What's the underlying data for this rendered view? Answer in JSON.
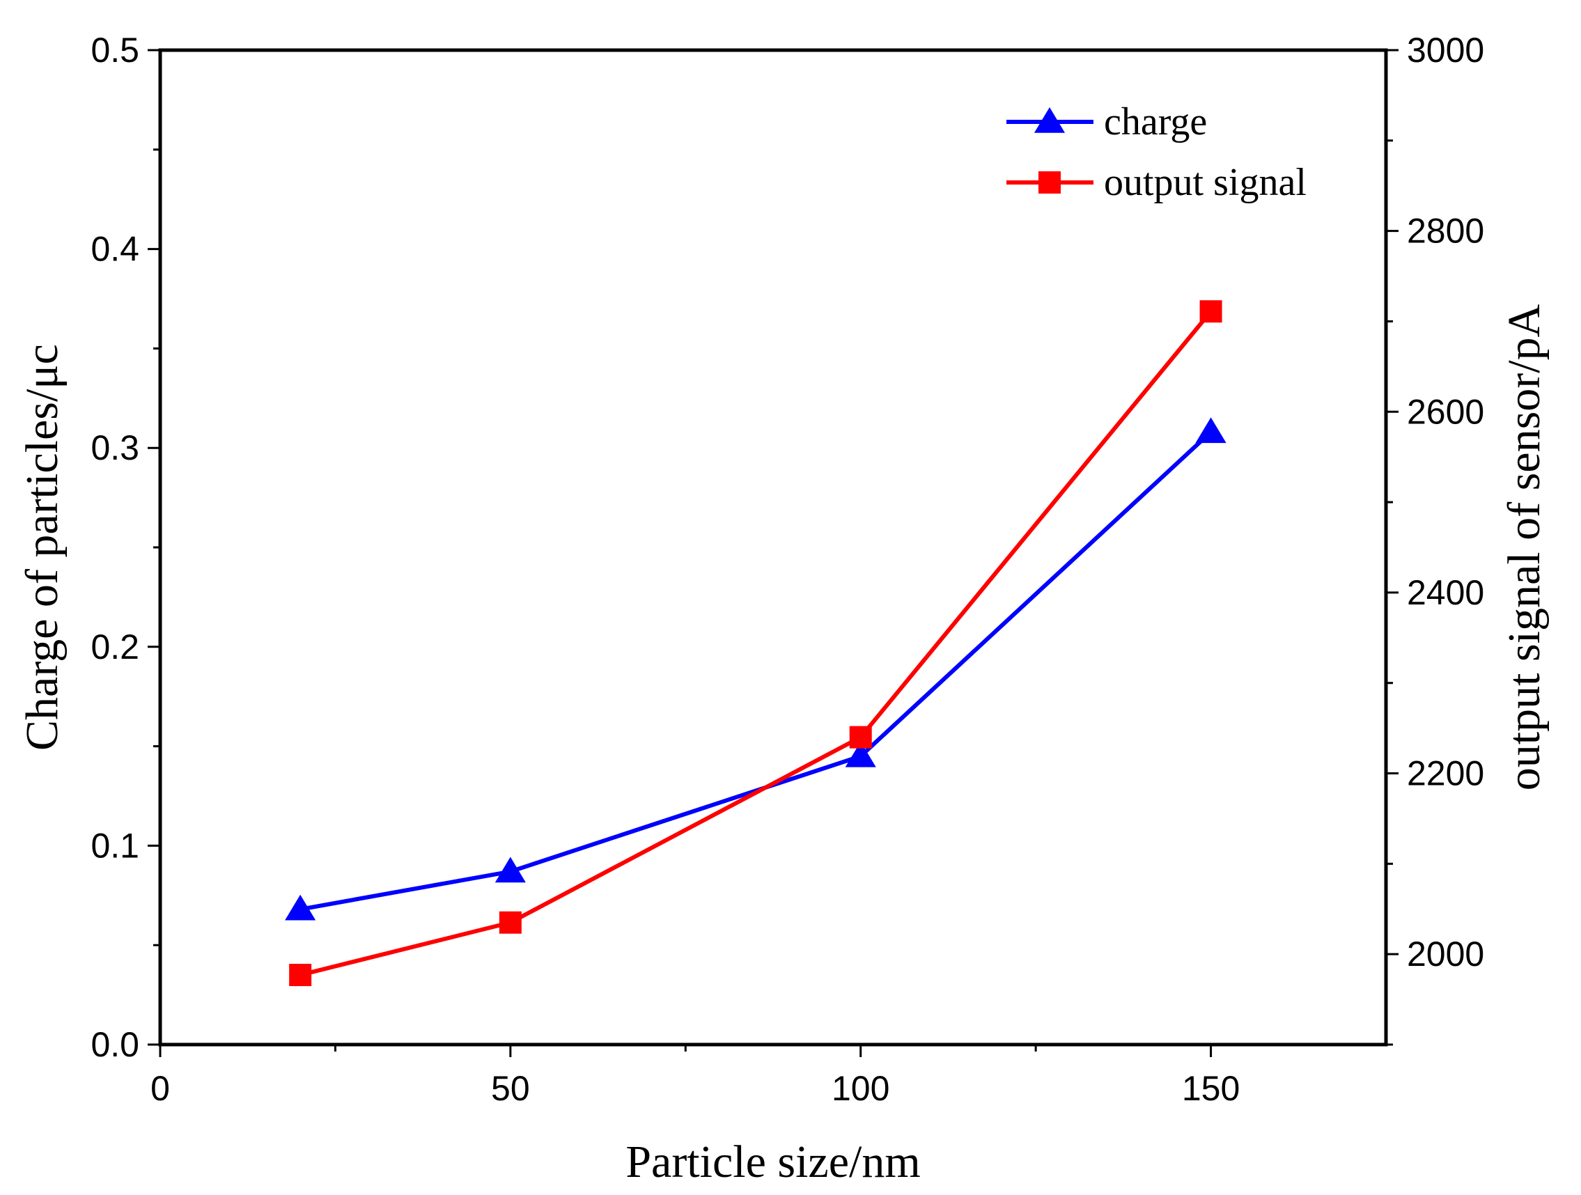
{
  "chart_data": {
    "type": "line",
    "x": [
      20,
      50,
      100,
      150
    ],
    "xlabel": "Particle size/nm",
    "xlim": [
      0,
      175
    ],
    "xticks": [
      0,
      50,
      100,
      150
    ],
    "xtick_labels": [
      "0",
      "50",
      "100",
      "150"
    ],
    "ylabel_left": "Charge of particles/μc",
    "ylim_left": [
      0.0,
      0.5
    ],
    "yticks_left": [
      0.0,
      0.1,
      0.2,
      0.3,
      0.4,
      0.5
    ],
    "ytick_labels_left": [
      "0.0",
      "0.1",
      "0.2",
      "0.3",
      "0.4",
      "0.5"
    ],
    "ylabel_right": "output signal of sensor/pA",
    "ylim_right": [
      1900,
      3000
    ],
    "yticks_right": [
      2000,
      2200,
      2400,
      2600,
      2800,
      3000
    ],
    "ytick_labels_right": [
      "2000",
      "2200",
      "2400",
      "2600",
      "2800",
      "3000"
    ],
    "legend_position": "top-right",
    "series": [
      {
        "name": "charge",
        "axis": "left",
        "marker": "triangle",
        "color": "#0000ff",
        "values": [
          0.068,
          0.087,
          0.145,
          0.308
        ]
      },
      {
        "name": "output signal",
        "axis": "right",
        "marker": "square",
        "color": "#ff0000",
        "values": [
          1977,
          2035,
          2240,
          2711
        ]
      }
    ]
  }
}
